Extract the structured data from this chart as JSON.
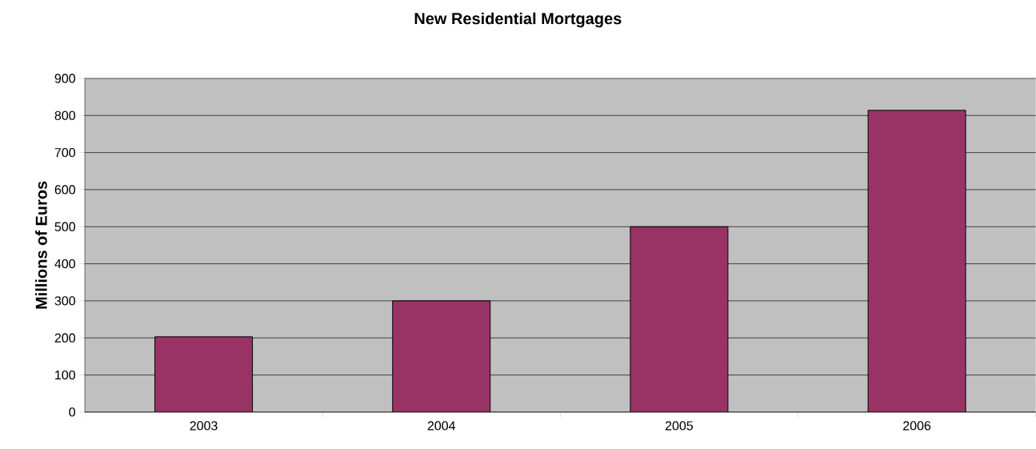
{
  "chart_data": {
    "type": "bar",
    "title": "New Residential Mortgages",
    "ylabel": "Millions of Euros",
    "categories": [
      "2003",
      "2004",
      "2005",
      "2006"
    ],
    "values": [
      203,
      300,
      500,
      814
    ],
    "color": "#993366",
    "ylim": [
      0,
      900
    ],
    "yticks": [
      0,
      100,
      200,
      300,
      400,
      500,
      600,
      700,
      800,
      900
    ],
    "grid": "y"
  }
}
